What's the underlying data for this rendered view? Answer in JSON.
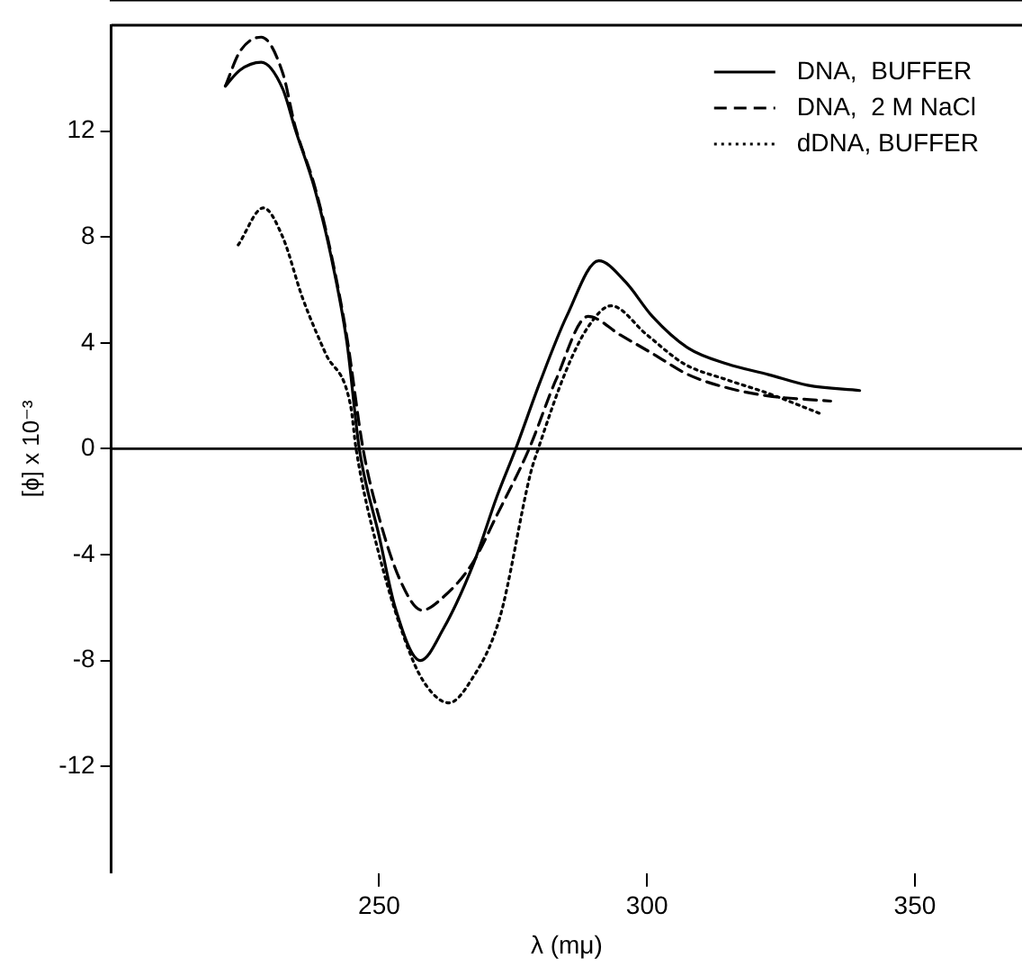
{
  "chart_data": {
    "type": "line",
    "xlabel": "λ (mμ)",
    "ylabel": "[ϕ] x 10⁻³",
    "xlim": [
      200,
      370
    ],
    "xticks": [
      250,
      300,
      350
    ],
    "ylim": [
      -16,
      16
    ],
    "yticks": [
      -12,
      -8,
      -4,
      0,
      4,
      8,
      12
    ],
    "grid": false,
    "legend": "top right",
    "marker": "none",
    "ref_lines": [
      {
        "axis": "y",
        "value": 0,
        "color": "#000000"
      }
    ],
    "series": [
      {
        "name": "DNA,  BUFFER",
        "color": "#000000",
        "line_style": "solid",
        "x": [
          221.3,
          224,
          228,
          232,
          234.3,
          238,
          241,
          244,
          246.3,
          250,
          253,
          257.7,
          262,
          267.7,
          272,
          275.5,
          280,
          285,
          291,
          296,
          301,
          307.7,
          315,
          322.7,
          330,
          339.7
        ],
        "values": [
          13.7,
          14.3,
          14.6,
          13.6,
          12.1,
          9.8,
          7.3,
          4,
          0,
          -3.3,
          -6,
          -8,
          -6.8,
          -4.3,
          -1.8,
          0,
          2.5,
          5,
          7.1,
          6.3,
          5,
          3.8,
          3.2,
          2.8,
          2.4,
          2.2
        ]
      },
      {
        "name": "DNA,  2 M NaCl",
        "color": "#000000",
        "line_style": "dashed",
        "x": [
          221.3,
          224,
          228,
          232,
          234.3,
          238,
          241,
          244,
          247,
          250,
          254,
          258,
          262,
          267.5,
          272,
          278,
          283,
          289,
          295,
          301,
          307.7,
          315,
          322.5,
          334.3
        ],
        "values": [
          13.7,
          15,
          15.55,
          14.2,
          12.2,
          9.9,
          7.4,
          4.2,
          0,
          -2.6,
          -5,
          -6.1,
          -5.6,
          -4.3,
          -2.5,
          0,
          2.6,
          5,
          4.3,
          3.6,
          2.8,
          2.3,
          2,
          1.8
        ]
      },
      {
        "name": "dDNA, BUFFER",
        "color": "#000000",
        "line_style": "dotted",
        "x": [
          223.7,
          228.4,
          232,
          235.7,
          240,
          244.7,
          245.7,
          250,
          255.9,
          259,
          263,
          267,
          272.5,
          278.3,
          279.7,
          285,
          289,
          293.3,
          300,
          307,
          315,
          322.5,
          332.7
        ],
        "values": [
          7.7,
          9.1,
          8,
          5.7,
          3.6,
          1.6,
          0,
          -4,
          -7.8,
          -9,
          -9.6,
          -8.8,
          -6.4,
          -0.9,
          0,
          3,
          4.6,
          5.4,
          4.3,
          3.2,
          2.6,
          2.1,
          1.3
        ]
      }
    ]
  }
}
